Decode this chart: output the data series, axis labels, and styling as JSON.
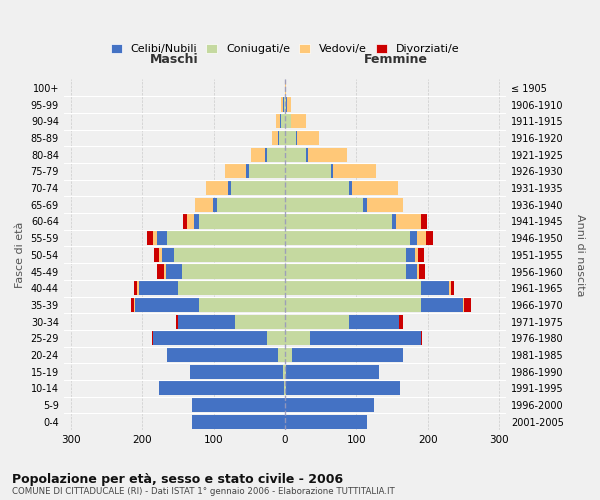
{
  "age_groups": [
    "0-4",
    "5-9",
    "10-14",
    "15-19",
    "20-24",
    "25-29",
    "30-34",
    "35-39",
    "40-44",
    "45-49",
    "50-54",
    "55-59",
    "60-64",
    "65-69",
    "70-74",
    "75-79",
    "80-84",
    "85-89",
    "90-94",
    "95-99",
    "100+"
  ],
  "birth_years": [
    "2001-2005",
    "1996-2000",
    "1991-1995",
    "1986-1990",
    "1981-1985",
    "1976-1980",
    "1971-1975",
    "1966-1970",
    "1961-1965",
    "1956-1960",
    "1951-1955",
    "1946-1950",
    "1941-1945",
    "1936-1940",
    "1931-1935",
    "1926-1930",
    "1921-1925",
    "1916-1920",
    "1911-1915",
    "1906-1910",
    "≤ 1905"
  ],
  "males_celibi": [
    130,
    130,
    175,
    130,
    155,
    160,
    80,
    90,
    55,
    22,
    18,
    15,
    8,
    6,
    5,
    4,
    3,
    2,
    2,
    1,
    0
  ],
  "males_coniugati": [
    0,
    0,
    1,
    3,
    10,
    25,
    70,
    120,
    150,
    145,
    155,
    165,
    120,
    95,
    75,
    50,
    25,
    8,
    5,
    2,
    0
  ],
  "males_vedovi": [
    0,
    0,
    0,
    0,
    0,
    0,
    0,
    1,
    2,
    2,
    3,
    5,
    10,
    25,
    30,
    30,
    20,
    8,
    5,
    2,
    0
  ],
  "males_divorziati": [
    0,
    0,
    0,
    0,
    1,
    1,
    3,
    5,
    5,
    10,
    8,
    8,
    5,
    0,
    0,
    0,
    0,
    0,
    0,
    0,
    0
  ],
  "females_celibi": [
    115,
    125,
    160,
    130,
    155,
    155,
    70,
    60,
    40,
    15,
    12,
    10,
    6,
    5,
    4,
    3,
    2,
    2,
    1,
    1,
    0
  ],
  "females_coniugati": [
    0,
    0,
    1,
    2,
    10,
    35,
    90,
    190,
    190,
    170,
    170,
    175,
    150,
    110,
    90,
    65,
    30,
    15,
    8,
    2,
    0
  ],
  "females_vedovi": [
    0,
    0,
    0,
    0,
    0,
    0,
    0,
    1,
    2,
    3,
    5,
    12,
    35,
    50,
    65,
    60,
    55,
    30,
    20,
    5,
    1
  ],
  "females_divorziati": [
    0,
    0,
    0,
    0,
    1,
    2,
    5,
    10,
    5,
    8,
    8,
    10,
    8,
    0,
    0,
    0,
    0,
    0,
    0,
    0,
    0
  ],
  "color_celibi": "#4472c4",
  "color_coniugati": "#c5d9a0",
  "color_vedovi": "#ffc878",
  "color_divorziati": "#cc0000",
  "title": "Popolazione per età, sesso e stato civile - 2006",
  "subtitle": "COMUNE DI CITTADUCALE (RI) - Dati ISTAT 1° gennaio 2006 - Elaborazione TUTTITALIA.IT",
  "xlabel_left": "Maschi",
  "xlabel_right": "Femmine",
  "ylabel_left": "Fasce di età",
  "ylabel_right": "Anni di nascita",
  "legend_labels": [
    "Celibi/Nubili",
    "Coniugati/e",
    "Vedovi/e",
    "Divorziati/e"
  ],
  "xlim": 310,
  "background_color": "#f0f0f0"
}
